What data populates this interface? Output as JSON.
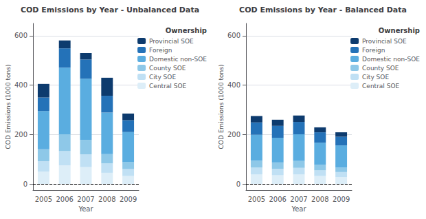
{
  "chart_data": [
    {
      "type": "bar",
      "stacked": true,
      "title": "COD Emissions by Year - Unbalanced Data",
      "xlabel": "Year",
      "ylabel": "COD Emissions (1000 tons)",
      "legend_title": "Ownership",
      "legend": "upper right",
      "grid": true,
      "categories": [
        "2005",
        "2006",
        "2007",
        "2008",
        "2009"
      ],
      "series": [
        {
          "name": "Central SOE",
          "color": "#ddeef8",
          "values": [
            50,
            75,
            68,
            45,
            32
          ]
        },
        {
          "name": "City SOE",
          "color": "#c0e0f4",
          "values": [
            42,
            58,
            52,
            38,
            28
          ]
        },
        {
          "name": "County SOE",
          "color": "#8ec8e8",
          "values": [
            48,
            68,
            58,
            38,
            28
          ]
        },
        {
          "name": "Domestic non-SOE",
          "color": "#5aade0",
          "values": [
            155,
            270,
            248,
            168,
            122
          ]
        },
        {
          "name": "Foreign",
          "color": "#2472b8",
          "values": [
            55,
            78,
            78,
            68,
            48
          ]
        },
        {
          "name": "Provincial SOE",
          "color": "#0d3b6e",
          "values": [
            55,
            32,
            26,
            73,
            27
          ]
        }
      ],
      "ylim": [
        -25,
        650
      ],
      "yticks": [
        0,
        200,
        400,
        600
      ]
    },
    {
      "type": "bar",
      "stacked": true,
      "title": "COD Emissions by Year - Balanced Data",
      "xlabel": "Year",
      "ylabel": "COD Emissions (1000 tons)",
      "legend_title": "Ownership",
      "legend": "upper right",
      "grid": true,
      "categories": [
        "2005",
        "2006",
        "2007",
        "2008",
        "2009"
      ],
      "series": [
        {
          "name": "Central SOE",
          "color": "#ddeef8",
          "values": [
            38,
            35,
            38,
            32,
            28
          ]
        },
        {
          "name": "City SOE",
          "color": "#c0e0f4",
          "values": [
            28,
            26,
            27,
            23,
            20
          ]
        },
        {
          "name": "County SOE",
          "color": "#8ec8e8",
          "values": [
            28,
            26,
            28,
            22,
            18
          ]
        },
        {
          "name": "Domestic non-SOE",
          "color": "#5aade0",
          "values": [
            105,
            100,
            108,
            90,
            90
          ]
        },
        {
          "name": "Foreign",
          "color": "#2472b8",
          "values": [
            50,
            48,
            50,
            42,
            35
          ]
        },
        {
          "name": "Provincial SOE",
          "color": "#0d3b6e",
          "values": [
            26,
            25,
            26,
            20,
            18
          ]
        }
      ],
      "ylim": [
        -25,
        650
      ],
      "yticks": [
        0,
        200,
        400,
        600
      ]
    }
  ]
}
